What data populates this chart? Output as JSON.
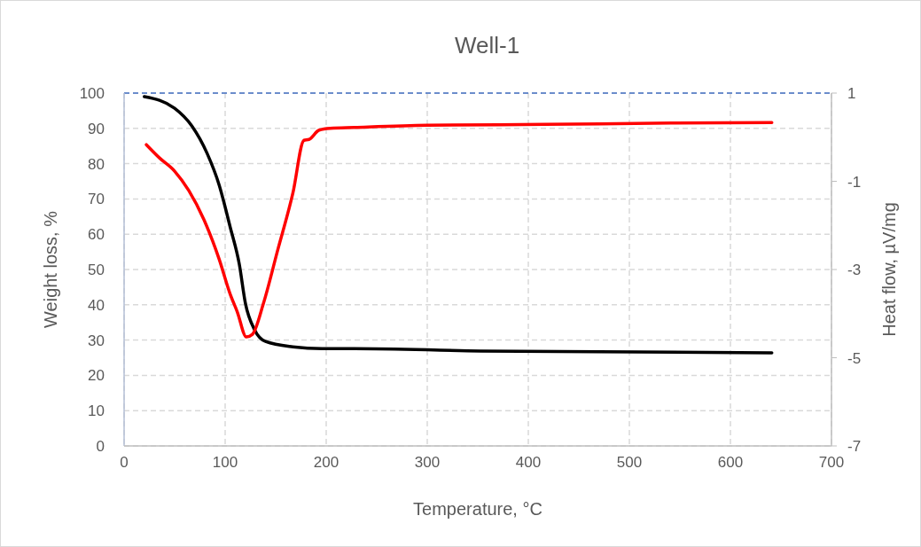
{
  "chart_data": {
    "type": "line",
    "title": "Well-1",
    "xlabel": "Temperature, °C",
    "ylabel": "Weight loss, %",
    "y2label": "Heat flow, µV/mg",
    "xlim": [
      0,
      700
    ],
    "xticks": [
      0,
      100,
      200,
      300,
      400,
      500,
      600,
      700
    ],
    "ylim": [
      0,
      100
    ],
    "yticks": [
      0,
      10,
      20,
      30,
      40,
      50,
      60,
      70,
      80,
      90,
      100
    ],
    "y2lim": [
      -7,
      1
    ],
    "y2ticks": [
      -7,
      -5,
      -3,
      -1,
      1
    ],
    "grid": true,
    "marker": "none",
    "line_style": "solid",
    "ref_lines": [
      {
        "axis": "y",
        "value": 100,
        "color": "#4472c4",
        "line_style": "dashed"
      }
    ],
    "series": [
      {
        "color": "#000000",
        "x": [
          20,
          50,
          67,
          82,
          94,
          105,
          114,
          120,
          129,
          140,
          167,
          196,
          228,
          353,
          641
        ],
        "values": [
          99,
          95.7,
          90.7,
          83,
          74,
          62,
          51.5,
          40.5,
          33,
          29.6,
          28.1,
          27.6,
          27.6,
          26.9,
          26.4
        ]
      },
      {
        "color": "#ff0000",
        "axis": "y2",
        "x": [
          22,
          35,
          50,
          64,
          79,
          94,
          105,
          112,
          121,
          127,
          138,
          152,
          167,
          178,
          183,
          193,
          204,
          228,
          300,
          416,
          541,
          641
        ],
        "values": [
          -0.17,
          -0.47,
          -0.77,
          -1.21,
          -1.87,
          -2.76,
          -3.56,
          -3.96,
          -4.53,
          -4.47,
          -3.76,
          -2.56,
          -1.27,
          -0.07,
          -0.05,
          0.16,
          0.2,
          0.22,
          0.27,
          0.29,
          0.32,
          0.33
        ]
      }
    ]
  }
}
